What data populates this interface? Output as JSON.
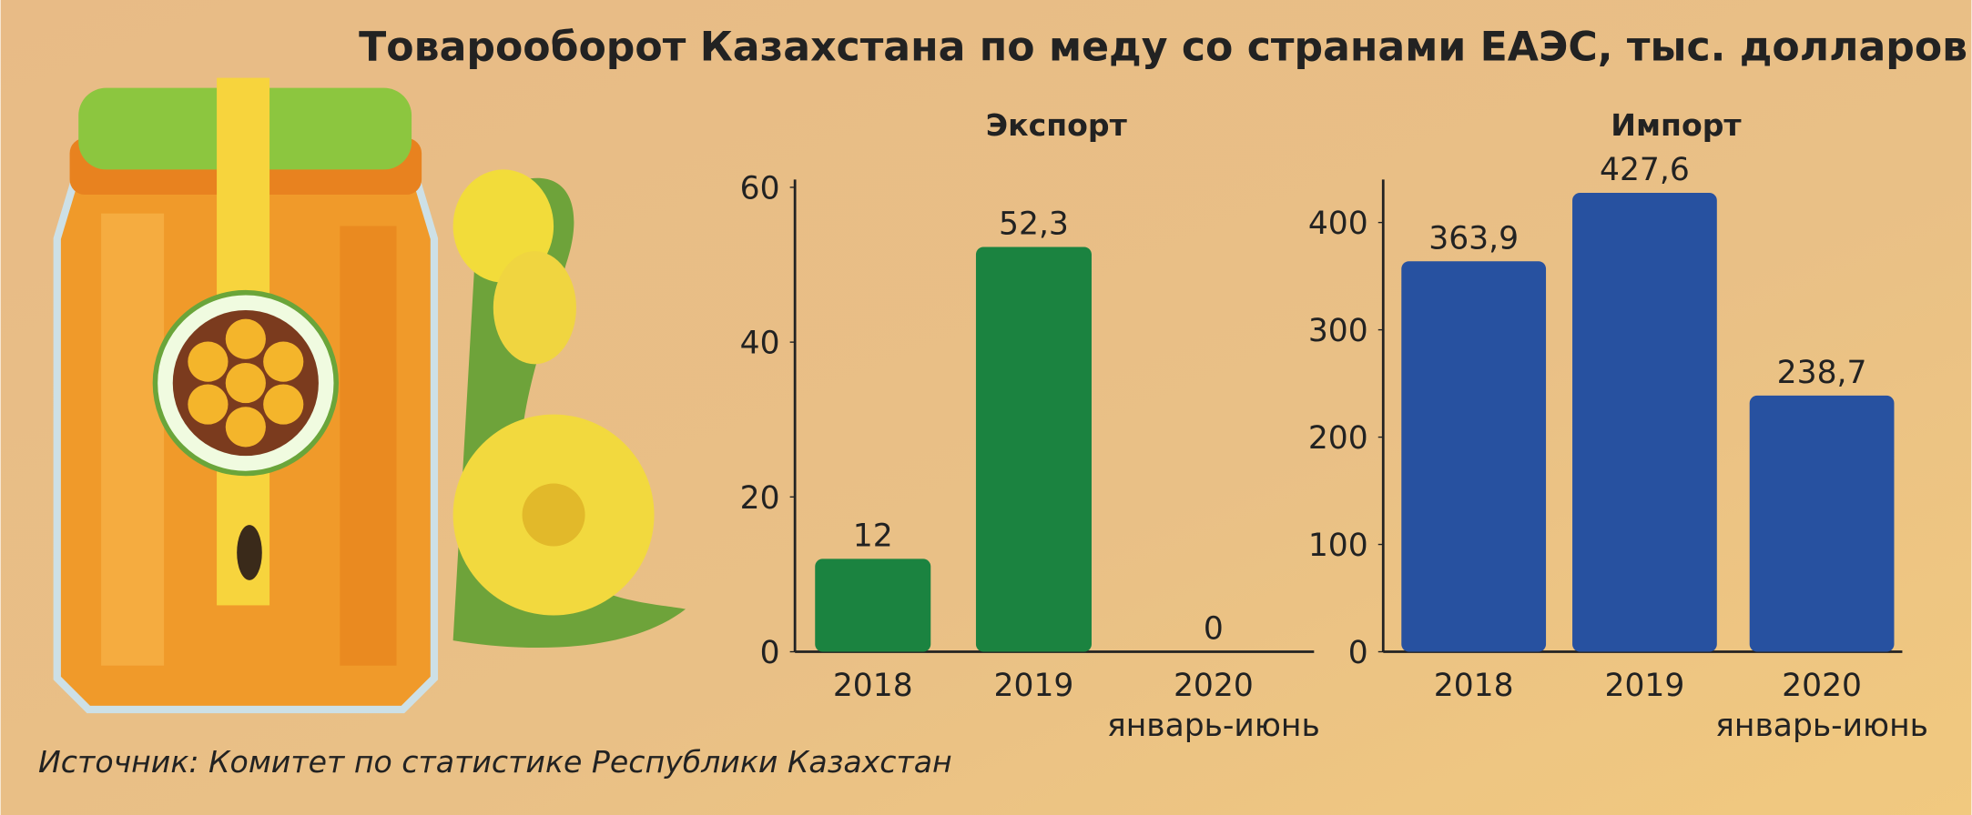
{
  "title": "Товарооборот Казахстана по меду со странами ЕАЭС, тыс. долларов",
  "source": "Источник: Комитет по статистике Республики Казахстан",
  "chart_data": [
    {
      "type": "bar",
      "title": "Экспорт",
      "categories": [
        "2018",
        "2019",
        "2020 январь-июнь"
      ],
      "values": [
        12,
        52.3,
        0
      ],
      "value_labels": [
        "12",
        "52,3",
        "0"
      ],
      "color": "#1b8340",
      "ylim": [
        0,
        61
      ],
      "yticks": [
        0,
        20,
        40,
        60
      ]
    },
    {
      "type": "bar",
      "title": "Импорт",
      "categories": [
        "2018",
        "2019",
        "2020 январь-июнь"
      ],
      "values": [
        363.9,
        427.6,
        238.7
      ],
      "value_labels": [
        "363,9",
        "427,6",
        "238,7"
      ],
      "color": "#2751a0",
      "ylim": [
        0,
        440
      ],
      "yticks": [
        0,
        100,
        200,
        300,
        400
      ]
    }
  ]
}
